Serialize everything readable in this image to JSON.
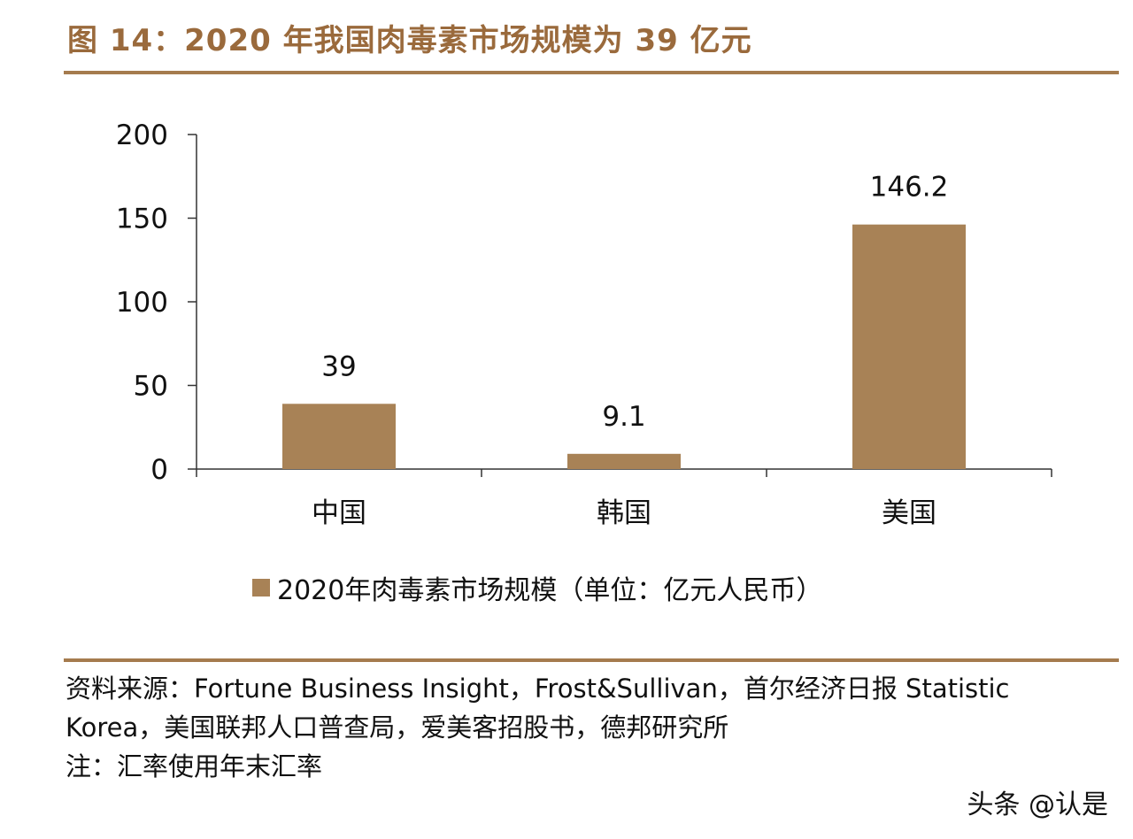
{
  "figure_title": "图 14：2020 年我国肉毒素市场规模为 39 亿元",
  "colors": {
    "accent": "#a57b4e",
    "title": "#9a6a3c",
    "bar": "#a88256",
    "axis": "#333333"
  },
  "chart_data": {
    "type": "bar",
    "categories": [
      "中国",
      "韩国",
      "美国"
    ],
    "values": [
      39,
      9.1,
      146.2
    ],
    "value_labels": [
      "39",
      "9.1",
      "146.2"
    ],
    "ylim": [
      0,
      200
    ],
    "yticks": [
      0,
      50,
      100,
      150,
      200
    ],
    "ytick_labels": [
      "0",
      "50",
      "100",
      "150",
      "200"
    ],
    "series_name": "2020年肉毒素市场规模（单位：亿元人民币）",
    "grid": false,
    "legend": "bottom-center"
  },
  "legend": {
    "label": "2020年肉毒素市场规模（单位：亿元人民币）"
  },
  "notes": {
    "source_line1": "资料来源：Fortune Business Insight，Frost&Sullivan，首尔经济日报 Statistic",
    "source_line2": "Korea，美国联邦人口普查局，爱美客招股书，德邦研究所",
    "note": "注：汇率使用年末汇率"
  },
  "watermark": "头条 @认是"
}
